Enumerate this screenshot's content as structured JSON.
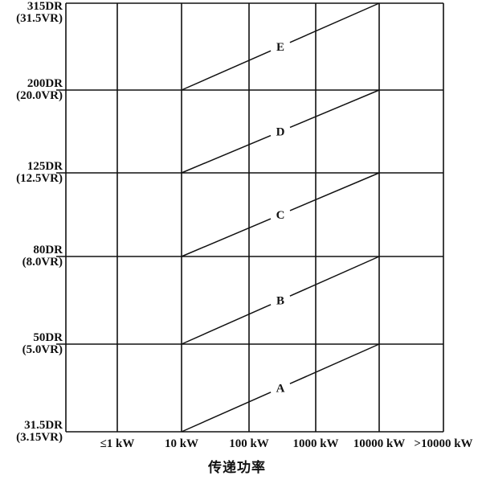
{
  "figure": {
    "background": "#ffffff",
    "line_color": "#111111",
    "text_color": "#111111"
  },
  "chart_data": {
    "type": "line",
    "title": "",
    "xlabel": "传递功率",
    "ylabel": "",
    "grid": true,
    "legend": "inline-labels-on-lines",
    "x_ticks": [
      "≤1 kW",
      "10 kW",
      "100 kW",
      "1000 kW",
      "10000 kW",
      ">10000 kW"
    ],
    "y_ticks": [
      {
        "dr": "315DR",
        "vr": "(31.5VR)"
      },
      {
        "dr": "200DR",
        "vr": "(20.0VR)"
      },
      {
        "dr": "125DR",
        "vr": "(12.5VR)"
      },
      {
        "dr": "80DR",
        "vr": "(8.0VR)"
      },
      {
        "dr": "50DR",
        "vr": "(5.0VR)"
      },
      {
        "dr": "31.5DR",
        "vr": "(3.15VR)"
      }
    ],
    "series": [
      {
        "name": "A",
        "x": [
          "10 kW",
          "10000 kW"
        ],
        "y": [
          "31.5DR",
          "50DR"
        ]
      },
      {
        "name": "B",
        "x": [
          "10 kW",
          "10000 kW"
        ],
        "y": [
          "50DR",
          "80DR"
        ]
      },
      {
        "name": "C",
        "x": [
          "10 kW",
          "10000 kW"
        ],
        "y": [
          "80DR",
          "125DR"
        ]
      },
      {
        "name": "D",
        "x": [
          "10 kW",
          "10000 kW"
        ],
        "y": [
          "125DR",
          "200DR"
        ]
      },
      {
        "name": "E",
        "x": [
          "10 kW",
          "10000 kW"
        ],
        "y": [
          "200DR",
          "315DR"
        ]
      }
    ]
  }
}
